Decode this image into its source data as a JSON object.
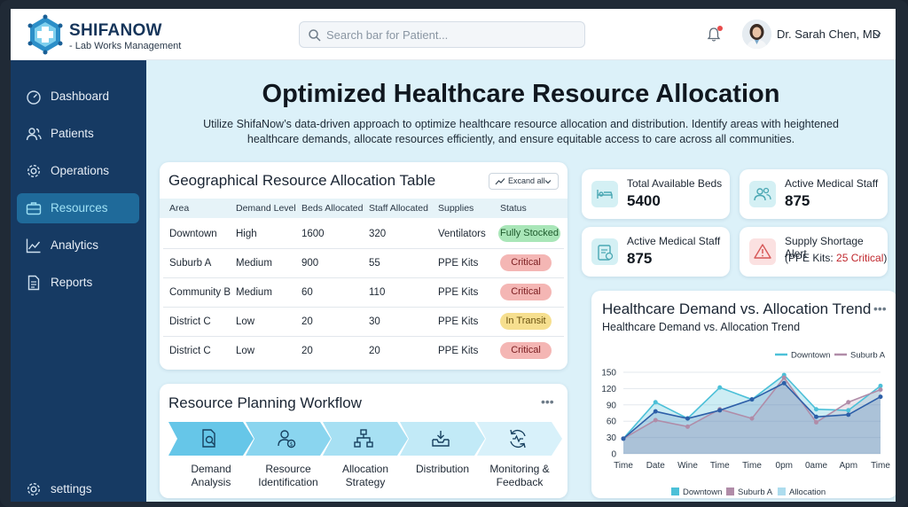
{
  "brand": {
    "name": "SHIFANOW",
    "subtitle": "- Lab Works Management"
  },
  "search": {
    "placeholder": "Search bar for Patient..."
  },
  "user": {
    "name": "Dr. Sarah Chen, MD"
  },
  "sidebar": {
    "items": [
      {
        "label": "Dashboard",
        "icon": "gauge-icon"
      },
      {
        "label": "Patients",
        "icon": "users-icon"
      },
      {
        "label": "Operations",
        "icon": "gear-icon"
      },
      {
        "label": "Resources",
        "icon": "briefcase-icon",
        "active": true
      },
      {
        "label": "Analytics",
        "icon": "chart-icon"
      },
      {
        "label": "Reports",
        "icon": "document-icon"
      }
    ],
    "settings_label": "settings"
  },
  "page": {
    "title": "Optimized Healthcare Resource Allocation",
    "description": "Utilize ShifaNow’s data-driven approach to optimize healthcare resource allocation and distribution. Identify areas with heightened healthcare demands, allocate resources efficiently, and ensure equitable access to care across all communities."
  },
  "allocation_table": {
    "title": "Geographical Resource Allocation Table",
    "expand_label": "Excand all",
    "columns": [
      "Area",
      "Demand Level",
      "Beds Allocated",
      "Staff Allocated",
      "Supplies",
      "Status"
    ],
    "rows": [
      {
        "area": "Downtown",
        "demand": "High",
        "beds": "1600",
        "staff": "320",
        "supplies": "Ventilators",
        "status": "Fully Stocked",
        "status_kind": "ok"
      },
      {
        "area": "Suburb A",
        "demand": "Medium",
        "beds": "900",
        "staff": "55",
        "supplies": "PPE Kits",
        "status": "Critical",
        "status_kind": "critical"
      },
      {
        "area": "Community B",
        "demand": "Medium",
        "beds": "60",
        "staff": "110",
        "supplies": "PPE Kits",
        "status": "Critical",
        "status_kind": "critical"
      },
      {
        "area": "District C",
        "demand": "Low",
        "beds": "20",
        "staff": "30",
        "supplies": "PPE Kits",
        "status": "In Transit",
        "status_kind": "transit"
      },
      {
        "area": "District C",
        "demand": "Low",
        "beds": "20",
        "staff": "20",
        "supplies": "PPE Kits",
        "status": "Critical",
        "status_kind": "critical"
      }
    ]
  },
  "workflow": {
    "title": "Resource Planning Workflow",
    "steps": [
      {
        "label": "Demand Analysis",
        "icon": "analysis-icon"
      },
      {
        "label": "Resource Identification",
        "icon": "identification-icon"
      },
      {
        "label": "Allocation Strategy",
        "icon": "strategy-icon"
      },
      {
        "label": "Distribution",
        "icon": "distribution-icon"
      },
      {
        "label": "Monitoring & Feedback",
        "icon": "monitoring-icon"
      }
    ]
  },
  "stats": {
    "beds": {
      "label": "Total Available Beds",
      "value": "5400"
    },
    "staff": {
      "label": "Active Medical Staff",
      "value": "875"
    },
    "staff2": {
      "label": "Active Medical Staff",
      "value": "875"
    },
    "shortage": {
      "label": "Supply Shortage Alert",
      "prefix": "(PPE Kits: ",
      "critical": "25 Critical",
      "suffix": ")"
    }
  },
  "colors": {
    "sidebar": "#163a63",
    "accent": "#1f6a9a",
    "downtown": "#4cc0d8",
    "suburb": "#b08ca8",
    "allocation": "#2d5fa8",
    "critical_bg": "#f4b6b4",
    "ok_bg": "#a9e6b8",
    "transit_bg": "#f6df8f",
    "critical_text": "#c0272d"
  },
  "chart_data": {
    "type": "line",
    "title": "Healthcare Demand vs. Allocation Trend",
    "subtitle": "Healthcare Demand vs. Allocation Trend",
    "categories": [
      "Time",
      "Date",
      "Wine",
      "Time",
      "Time",
      "0pm",
      "0ame",
      "Apm",
      "Time"
    ],
    "ylim": [
      0,
      150
    ],
    "yticks": [
      0,
      30,
      60,
      90,
      120,
      150
    ],
    "series": [
      {
        "name": "Downtown",
        "values": [
          28,
          95,
          65,
          122,
          100,
          145,
          82,
          80,
          125
        ]
      },
      {
        "name": "Suburb A",
        "values": [
          28,
          62,
          50,
          82,
          65,
          140,
          58,
          95,
          118
        ]
      },
      {
        "name": "Allocation",
        "values": [
          28,
          78,
          65,
          80,
          100,
          130,
          68,
          72,
          105
        ]
      }
    ],
    "legend_top": [
      "Downtown",
      "Suburb A"
    ],
    "legend_bottom": [
      "Downtown",
      "Suburb A",
      "Allocation"
    ]
  }
}
